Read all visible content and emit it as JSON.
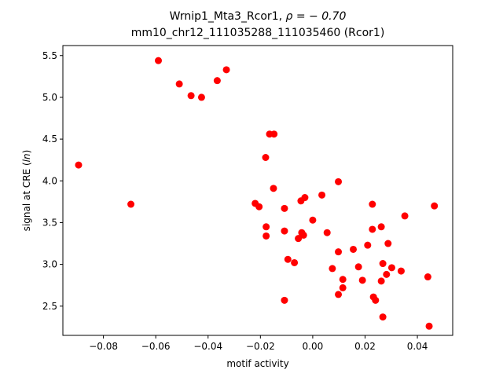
{
  "chart_data": {
    "type": "scatter",
    "title_line1_prefix": "Wrnip1_Mta3_Rcor1, ",
    "title_line1_rho": "ρ = − 0.70",
    "title_line2": "mm10_chr12_111035288_111035460 (Rcor1)",
    "xlabel": "motif activity",
    "ylabel_prefix": "signal at CRE (",
    "ylabel_italic": "ln",
    "ylabel_suffix": ")",
    "xlim": [
      -0.0955,
      0.0535
    ],
    "ylim": [
      2.15,
      5.62
    ],
    "x_ticks": [
      -0.08,
      -0.06,
      -0.04,
      -0.02,
      0.0,
      0.02,
      0.04
    ],
    "x_tick_labels": [
      "−0.08",
      "−0.06",
      "−0.04",
      "−0.02",
      "0.00",
      "0.02",
      "0.04"
    ],
    "y_ticks": [
      2.5,
      3.0,
      3.5,
      4.0,
      4.5,
      5.0,
      5.5
    ],
    "y_tick_labels": [
      "2.5",
      "3.0",
      "3.5",
      "4.0",
      "4.5",
      "5.0",
      "5.5"
    ],
    "grid": false,
    "marker_color": "#ff0000",
    "points": [
      {
        "x": -0.0895,
        "y": 4.19
      },
      {
        "x": -0.0695,
        "y": 3.72
      },
      {
        "x": -0.059,
        "y": 5.44
      },
      {
        "x": -0.051,
        "y": 5.16
      },
      {
        "x": -0.0465,
        "y": 5.02
      },
      {
        "x": -0.0425,
        "y": 5.0
      },
      {
        "x": -0.0365,
        "y": 5.2
      },
      {
        "x": -0.033,
        "y": 5.33
      },
      {
        "x": -0.022,
        "y": 3.73
      },
      {
        "x": -0.0205,
        "y": 3.69
      },
      {
        "x": -0.018,
        "y": 4.28
      },
      {
        "x": -0.0178,
        "y": 3.45
      },
      {
        "x": -0.0178,
        "y": 3.34
      },
      {
        "x": -0.0165,
        "y": 4.56
      },
      {
        "x": -0.0148,
        "y": 4.56
      },
      {
        "x": -0.015,
        "y": 3.91
      },
      {
        "x": -0.0108,
        "y": 3.67
      },
      {
        "x": -0.0108,
        "y": 3.4
      },
      {
        "x": -0.0108,
        "y": 2.57
      },
      {
        "x": -0.0095,
        "y": 3.06
      },
      {
        "x": -0.007,
        "y": 3.02
      },
      {
        "x": -0.0055,
        "y": 3.31
      },
      {
        "x": -0.0045,
        "y": 3.76
      },
      {
        "x": -0.0042,
        "y": 3.38
      },
      {
        "x": -0.0035,
        "y": 3.35
      },
      {
        "x": -0.003,
        "y": 3.8
      },
      {
        "x": 0.0,
        "y": 3.53
      },
      {
        "x": 0.0035,
        "y": 3.83
      },
      {
        "x": 0.0055,
        "y": 3.38
      },
      {
        "x": 0.0075,
        "y": 2.95
      },
      {
        "x": 0.0098,
        "y": 3.99
      },
      {
        "x": 0.0098,
        "y": 3.15
      },
      {
        "x": 0.0098,
        "y": 2.64
      },
      {
        "x": 0.0115,
        "y": 2.82
      },
      {
        "x": 0.0115,
        "y": 2.72
      },
      {
        "x": 0.0155,
        "y": 3.18
      },
      {
        "x": 0.0175,
        "y": 2.97
      },
      {
        "x": 0.019,
        "y": 2.81
      },
      {
        "x": 0.021,
        "y": 3.23
      },
      {
        "x": 0.0228,
        "y": 3.72
      },
      {
        "x": 0.0228,
        "y": 3.42
      },
      {
        "x": 0.0232,
        "y": 2.61
      },
      {
        "x": 0.024,
        "y": 2.57
      },
      {
        "x": 0.0262,
        "y": 3.45
      },
      {
        "x": 0.0262,
        "y": 2.8
      },
      {
        "x": 0.0268,
        "y": 3.01
      },
      {
        "x": 0.0268,
        "y": 2.37
      },
      {
        "x": 0.0282,
        "y": 2.88
      },
      {
        "x": 0.0288,
        "y": 3.25
      },
      {
        "x": 0.0302,
        "y": 2.96
      },
      {
        "x": 0.0338,
        "y": 2.92
      },
      {
        "x": 0.0352,
        "y": 3.58
      },
      {
        "x": 0.044,
        "y": 2.85
      },
      {
        "x": 0.0445,
        "y": 2.26
      },
      {
        "x": 0.0465,
        "y": 3.7
      }
    ]
  }
}
